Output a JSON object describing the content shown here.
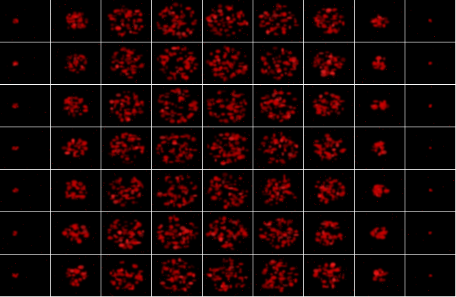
{
  "mosaic": {
    "rows": 7,
    "cols": 9,
    "background_color": "#000000",
    "separator_color": "#ffffff",
    "signal_color": "#cc0000",
    "highlight_color": "#ff2020"
  }
}
